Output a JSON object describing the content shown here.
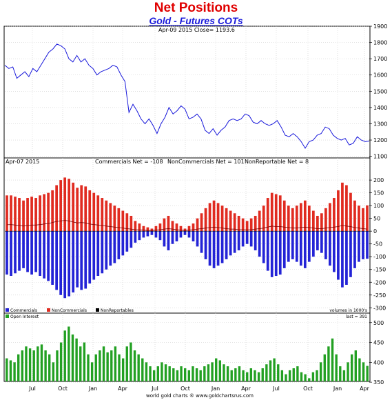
{
  "title": "Net Positions",
  "subtitle": "Gold - Futures COTs",
  "footer": "world gold charts ® www.goldchartsrus.com",
  "colors": {
    "price": "#1a1adb",
    "commercials": "#2323d6",
    "noncommercials": "#e02b20",
    "nonreportables": "#000000",
    "open_interest": "#22a022"
  },
  "chart_data": [
    {
      "type": "line",
      "header": "Apr-09  2015     Close= 1193.6",
      "y_ticks": [
        1100,
        1200,
        1300,
        1400,
        1500,
        1600,
        1700,
        1800,
        1900
      ],
      "ylim": [
        1090,
        1900
      ],
      "series": [
        {
          "values": [
            1660,
            1640,
            1650,
            1580,
            1600,
            1620,
            1590,
            1640,
            1620,
            1660,
            1700,
            1740,
            1760,
            1790,
            1780,
            1760,
            1700,
            1680,
            1720,
            1680,
            1700,
            1660,
            1640,
            1600,
            1620,
            1630,
            1640,
            1660,
            1650,
            1600,
            1560,
            1370,
            1420,
            1380,
            1330,
            1300,
            1330,
            1290,
            1240,
            1300,
            1340,
            1400,
            1360,
            1380,
            1410,
            1390,
            1330,
            1340,
            1360,
            1330,
            1260,
            1240,
            1270,
            1230,
            1260,
            1280,
            1320,
            1330,
            1320,
            1330,
            1360,
            1350,
            1310,
            1300,
            1320,
            1300,
            1290,
            1300,
            1320,
            1280,
            1230,
            1220,
            1240,
            1220,
            1190,
            1150,
            1190,
            1200,
            1230,
            1240,
            1280,
            1270,
            1230,
            1210,
            1200,
            1210,
            1170,
            1180,
            1220,
            1200,
            1190,
            1194
          ]
        }
      ]
    },
    {
      "type": "bar",
      "header": "Apr-07  2015",
      "stats": [
        "Commercials Net = -108",
        "NonCommercials Net = 101",
        "NonReportable Net = 8"
      ],
      "legend": [
        "Commercials",
        "NonCommercials",
        "NonReportables"
      ],
      "units_note": "volumes in 1000's",
      "y_ticks": [
        -300,
        -250,
        -200,
        -150,
        -100,
        -50,
        0,
        50,
        100,
        150,
        200
      ],
      "ylim": [
        -310,
        230
      ],
      "noncommercials": [
        140,
        140,
        135,
        130,
        120,
        130,
        135,
        130,
        140,
        145,
        150,
        160,
        180,
        200,
        210,
        205,
        190,
        170,
        180,
        175,
        160,
        150,
        140,
        130,
        120,
        110,
        100,
        90,
        80,
        70,
        60,
        40,
        30,
        20,
        15,
        10,
        20,
        30,
        50,
        60,
        40,
        30,
        20,
        10,
        20,
        30,
        50,
        70,
        90,
        110,
        120,
        110,
        100,
        90,
        80,
        70,
        60,
        50,
        40,
        50,
        60,
        80,
        100,
        130,
        150,
        145,
        140,
        120,
        100,
        90,
        100,
        110,
        120,
        100,
        80,
        60,
        70,
        90,
        110,
        130,
        160,
        190,
        180,
        150,
        120,
        100,
        90,
        101
      ],
      "commercials": [
        -170,
        -175,
        -165,
        -155,
        -145,
        -160,
        -170,
        -160,
        -175,
        -185,
        -195,
        -210,
        -230,
        -250,
        -262,
        -255,
        -240,
        -220,
        -230,
        -225,
        -205,
        -190,
        -175,
        -165,
        -150,
        -135,
        -125,
        -110,
        -95,
        -80,
        -65,
        -45,
        -35,
        -25,
        -20,
        -15,
        -25,
        -35,
        -60,
        -75,
        -50,
        -40,
        -25,
        -15,
        -25,
        -40,
        -60,
        -85,
        -110,
        -135,
        -145,
        -135,
        -125,
        -110,
        -95,
        -85,
        -75,
        -60,
        -50,
        -60,
        -75,
        -100,
        -125,
        -155,
        -180,
        -175,
        -170,
        -145,
        -120,
        -110,
        -120,
        -135,
        -145,
        -120,
        -100,
        -75,
        -85,
        -110,
        -135,
        -160,
        -190,
        -220,
        -210,
        -180,
        -145,
        -120,
        -110,
        -108
      ],
      "nonreportables": [
        25,
        26,
        24,
        22,
        20,
        22,
        24,
        24,
        26,
        28,
        30,
        34,
        38,
        40,
        42,
        40,
        36,
        32,
        34,
        32,
        28,
        26,
        24,
        22,
        20,
        18,
        16,
        14,
        12,
        10,
        8,
        6,
        5,
        4,
        3,
        3,
        4,
        6,
        8,
        10,
        8,
        6,
        4,
        3,
        4,
        6,
        8,
        10,
        12,
        14,
        16,
        14,
        12,
        10,
        8,
        8,
        6,
        6,
        5,
        6,
        8,
        10,
        12,
        16,
        20,
        18,
        18,
        16,
        14,
        12,
        12,
        14,
        16,
        14,
        12,
        10,
        10,
        12,
        14,
        16,
        18,
        22,
        20,
        18,
        14,
        12,
        10,
        8
      ]
    },
    {
      "type": "bar",
      "header": "Open Interest",
      "last_label": "last = 391",
      "y_ticks": [
        350,
        400,
        450,
        500
      ],
      "ylim": [
        352,
        510
      ],
      "values": [
        410,
        405,
        400,
        420,
        430,
        440,
        435,
        430,
        440,
        445,
        430,
        420,
        400,
        430,
        450,
        480,
        490,
        470,
        460,
        440,
        450,
        420,
        400,
        420,
        430,
        440,
        425,
        430,
        440,
        420,
        410,
        440,
        450,
        430,
        420,
        410,
        400,
        390,
        380,
        390,
        400,
        395,
        390,
        385,
        380,
        390,
        385,
        380,
        390,
        385,
        380,
        390,
        395,
        400,
        410,
        405,
        395,
        390,
        380,
        385,
        390,
        380,
        375,
        385,
        380,
        375,
        385,
        395,
        405,
        410,
        395,
        380,
        370,
        380,
        385,
        390,
        375,
        370,
        360,
        375,
        380,
        400,
        420,
        440,
        460,
        420,
        390,
        380,
        400,
        420,
        430,
        410,
        400,
        391
      ],
      "x_ticks": [
        {
          "label": "Jul",
          "x": 47
        },
        {
          "label": "Oct",
          "x": 91
        },
        {
          "label": "Jan",
          "x": 135
        },
        {
          "label": "Apr",
          "x": 178
        },
        {
          "label": "Jul",
          "x": 225
        },
        {
          "label": "Oct",
          "x": 269
        },
        {
          "label": "Jan",
          "x": 313
        },
        {
          "label": "Apr",
          "x": 357
        },
        {
          "label": "Jul",
          "x": 401
        },
        {
          "label": "Oct",
          "x": 447
        },
        {
          "label": "Jan",
          "x": 490
        },
        {
          "label": "Apr",
          "x": 529
        }
      ]
    }
  ]
}
